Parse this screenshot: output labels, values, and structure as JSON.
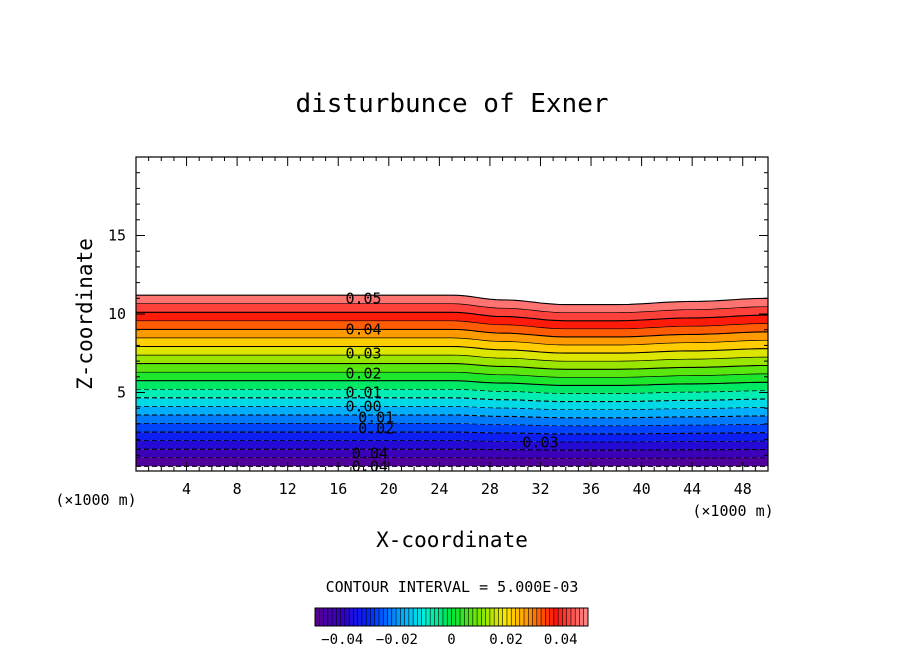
{
  "chart_data": {
    "type": "contour",
    "title": "disturbunce of Exner",
    "xlabel": "X-coordinate",
    "ylabel": "Z-coordinate",
    "x_unit": "(×1000 m)",
    "xlim": [
      0,
      50
    ],
    "ylim": [
      0,
      20
    ],
    "x_ticks": [
      4,
      8,
      12,
      16,
      20,
      24,
      28,
      32,
      36,
      40,
      44,
      48
    ],
    "y_ticks": [
      5,
      10,
      15
    ],
    "contour_interval_text": "CONTOUR INTERVAL = 5.000E-03",
    "colorbar": {
      "range": [
        -0.05,
        0.05
      ],
      "ticks": [
        {
          "value": -0.04,
          "label": "−0.04"
        },
        {
          "value": -0.02,
          "label": "−0.02"
        },
        {
          "value": 0,
          "label": "0"
        },
        {
          "value": 0.02,
          "label": "0.02"
        },
        {
          "value": 0.04,
          "label": "0.04"
        }
      ]
    },
    "top_boundary_z_profile": [
      [
        0,
        11.2
      ],
      [
        16,
        11.2
      ],
      [
        25,
        11.2
      ],
      [
        29,
        10.9
      ],
      [
        34,
        10.6
      ],
      [
        38,
        10.6
      ],
      [
        44,
        10.8
      ],
      [
        50,
        11.0
      ]
    ],
    "bottom_z": 0.3,
    "contour_labels": [
      {
        "text": "0.05",
        "x": 18.0,
        "z": 11.0
      },
      {
        "text": "0.04",
        "x": 18.0,
        "z": 9.0
      },
      {
        "text": "0.03",
        "x": 18.0,
        "z": 7.5
      },
      {
        "text": "0.02",
        "x": 18.0,
        "z": 6.2
      },
      {
        "text": "0.01",
        "x": 18.0,
        "z": 5.0
      },
      {
        "text": "0.00",
        "x": 18.0,
        "z": 4.1
      },
      {
        "text": "0.01",
        "x": 19.0,
        "z": 3.4
      },
      {
        "text": "0.02",
        "x": 19.0,
        "z": 2.7
      },
      {
        "text": "0.03",
        "x": 32.0,
        "z": 1.8
      },
      {
        "text": "0.04",
        "x": 18.5,
        "z": 1.1
      },
      {
        "text": "0.04",
        "x": 18.5,
        "z": 0.3
      }
    ]
  }
}
